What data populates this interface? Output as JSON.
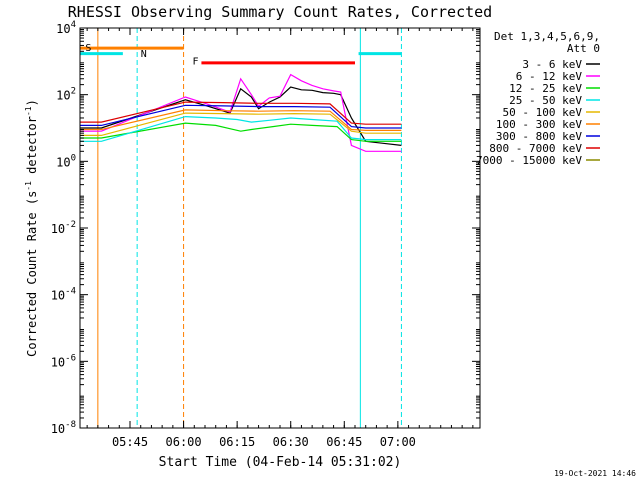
{
  "chart_data": {
    "type": "line",
    "title": "RHESSI Observing Summary Count Rates, Corrected",
    "xlabel": "Start Time (04-Feb-14 05:31:02)",
    "ylabel": "Corrected Count Rate (s",
    "ylabel_sup1": "-1",
    "ylabel_mid": " detector",
    "ylabel_sup2": "-1",
    "ylabel_end": ")",
    "x_unit": "minutes since 05:31:02",
    "xlim": [
      0,
      112
    ],
    "ylog": true,
    "ylim": [
      1e-08,
      10000.0
    ],
    "x_ticks": [
      {
        "v": 14,
        "label": "05:45"
      },
      {
        "v": 29,
        "label": "06:00"
      },
      {
        "v": 44,
        "label": "06:15"
      },
      {
        "v": 59,
        "label": "06:30"
      },
      {
        "v": 74,
        "label": "06:45"
      },
      {
        "v": 89,
        "label": "07:00"
      }
    ],
    "y_ticks": [
      {
        "v": 10000,
        "base": "10",
        "exp": "4"
      },
      {
        "v": 100,
        "base": "10",
        "exp": "2"
      },
      {
        "v": 1,
        "base": "10",
        "exp": "0"
      },
      {
        "v": 0.01,
        "base": "10",
        "exp": "-2"
      },
      {
        "v": 0.0001,
        "base": "10",
        "exp": "-4"
      },
      {
        "v": 1e-06,
        "base": "10",
        "exp": "-6"
      },
      {
        "v": 1e-08,
        "base": "10",
        "exp": "-8"
      }
    ],
    "legend_header": [
      "Det 1,3,4,5,6,9,",
      "Att 0"
    ],
    "legend_position": "top-right",
    "timestamp": "19-Oct-2021 14:46",
    "series": [
      {
        "name": "3 - 6 keV",
        "color": "#000000",
        "points": [
          [
            0,
            10
          ],
          [
            6,
            10
          ],
          [
            29.5,
            70
          ],
          [
            35,
            48
          ],
          [
            42,
            28
          ],
          [
            45,
            150
          ],
          [
            48,
            85
          ],
          [
            50,
            38
          ],
          [
            53,
            60
          ],
          [
            56,
            85
          ],
          [
            59,
            170
          ],
          [
            62,
            140
          ],
          [
            65,
            135
          ],
          [
            68,
            115
          ],
          [
            71,
            110
          ],
          [
            73,
            100
          ],
          [
            76,
            20
          ],
          [
            80,
            4
          ],
          [
            90,
            3
          ]
        ]
      },
      {
        "name": "6 - 12 keV",
        "color": "#ff00ff",
        "points": [
          [
            0,
            8
          ],
          [
            6,
            8
          ],
          [
            29.5,
            85
          ],
          [
            35,
            55
          ],
          [
            42,
            30
          ],
          [
            45,
            300
          ],
          [
            48,
            100
          ],
          [
            50,
            45
          ],
          [
            53,
            80
          ],
          [
            56,
            90
          ],
          [
            59,
            400
          ],
          [
            62,
            260
          ],
          [
            65,
            190
          ],
          [
            68,
            150
          ],
          [
            71,
            130
          ],
          [
            73,
            120
          ],
          [
            76,
            3
          ],
          [
            80,
            2
          ],
          [
            90,
            2
          ]
        ]
      },
      {
        "name": "12 - 25 keV",
        "color": "#00dd00",
        "points": [
          [
            0,
            5
          ],
          [
            6,
            5
          ],
          [
            29.5,
            14
          ],
          [
            38,
            12
          ],
          [
            45,
            8
          ],
          [
            48,
            9
          ],
          [
            54,
            11
          ],
          [
            59,
            13
          ],
          [
            65,
            12
          ],
          [
            72,
            11
          ],
          [
            76,
            4.5
          ],
          [
            80,
            4
          ],
          [
            90,
            4
          ]
        ]
      },
      {
        "name": "25 - 50 keV",
        "color": "#00e5e5",
        "points": [
          [
            0,
            4
          ],
          [
            6,
            4
          ],
          [
            29.5,
            22
          ],
          [
            38,
            20
          ],
          [
            44,
            18
          ],
          [
            48,
            15
          ],
          [
            53,
            17
          ],
          [
            59,
            20
          ],
          [
            65,
            18
          ],
          [
            72,
            16
          ],
          [
            76,
            5
          ],
          [
            80,
            4.5
          ],
          [
            90,
            4.5
          ]
        ]
      },
      {
        "name": "50 - 100 keV",
        "color": "#e5b800",
        "points": [
          [
            0,
            6
          ],
          [
            6,
            6
          ],
          [
            29.5,
            28
          ],
          [
            40,
            27
          ],
          [
            50,
            26
          ],
          [
            60,
            27
          ],
          [
            70,
            26
          ],
          [
            76,
            8
          ],
          [
            80,
            7
          ],
          [
            90,
            7
          ]
        ]
      },
      {
        "name": "100 - 300 keV",
        "color": "#ff8000",
        "points": [
          [
            0,
            9
          ],
          [
            6,
            9
          ],
          [
            29.5,
            35
          ],
          [
            40,
            33
          ],
          [
            50,
            32
          ],
          [
            60,
            33
          ],
          [
            70,
            32
          ],
          [
            76,
            9
          ],
          [
            80,
            8.5
          ],
          [
            90,
            8.5
          ]
        ]
      },
      {
        "name": "300 - 800 keV",
        "color": "#0000dd",
        "points": [
          [
            0,
            12
          ],
          [
            6,
            12
          ],
          [
            29.5,
            48
          ],
          [
            40,
            46
          ],
          [
            50,
            44
          ],
          [
            60,
            44
          ],
          [
            70,
            42
          ],
          [
            76,
            11
          ],
          [
            80,
            10
          ],
          [
            90,
            10
          ]
        ]
      },
      {
        "name": "800 - 7000 keV",
        "color": "#dd0000",
        "points": [
          [
            0,
            15
          ],
          [
            6,
            15
          ],
          [
            29.5,
            60
          ],
          [
            40,
            58
          ],
          [
            50,
            55
          ],
          [
            60,
            55
          ],
          [
            70,
            53
          ],
          [
            76,
            14
          ],
          [
            80,
            13
          ],
          [
            90,
            13
          ]
        ]
      },
      {
        "name": "7000 - 15000 keV",
        "color": "#8b8b00",
        "points": []
      }
    ],
    "flags": [
      {
        "label": "S",
        "color": "#ff8000",
        "x0": 0,
        "x1": 29,
        "value": 2500
      },
      {
        "label": "N",
        "color": "#00e5e5",
        "x0": 0,
        "x1": 12,
        "value": 1700
      },
      {
        "label": "N",
        "color": "#00e5e5",
        "x0": 78,
        "x1": 90,
        "value": 1700
      },
      {
        "label": "F",
        "color": "#ff0000",
        "x0": 34,
        "x1": 77,
        "value": 900
      }
    ],
    "flag_labels": [
      {
        "text": "S",
        "color": "#ff8000",
        "x": 1.5,
        "value": 2700
      },
      {
        "text": "N",
        "color": "#00e5e5",
        "x": 17,
        "value": 1800
      },
      {
        "text": "F",
        "color": "#ff0000",
        "x": 31.5,
        "value": 1050
      }
    ],
    "vlines": [
      {
        "x": 5,
        "color": "#ff8000",
        "dashed": false
      },
      {
        "x": 16,
        "color": "#00e5e5",
        "dashed": true
      },
      {
        "x": 29,
        "color": "#ff8000",
        "dashed": true
      },
      {
        "x": 78.5,
        "color": "#00e5e5",
        "dashed": false
      },
      {
        "x": 90,
        "color": "#00e5e5",
        "dashed": true
      }
    ]
  }
}
